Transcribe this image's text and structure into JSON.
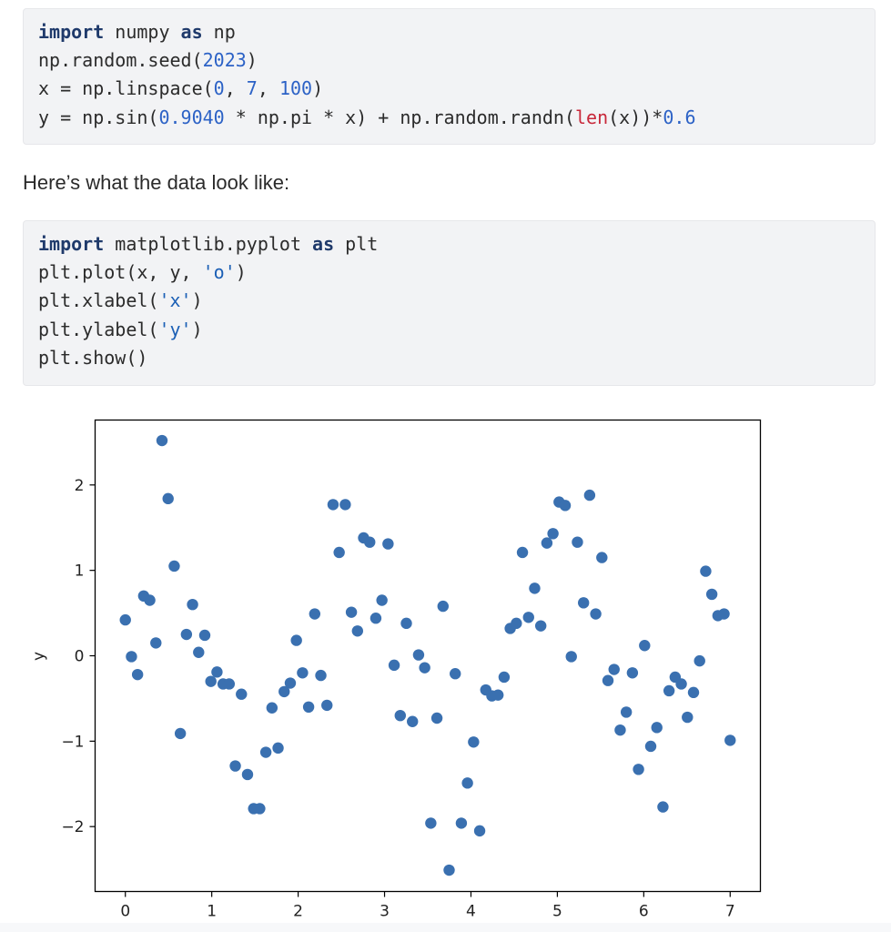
{
  "code1": {
    "lines": [
      [
        {
          "t": "import",
          "c": "kw"
        },
        {
          "t": " numpy "
        },
        {
          "t": "as",
          "c": "kw"
        },
        {
          "t": " np"
        }
      ],
      [
        {
          "t": "np.random.seed("
        },
        {
          "t": "2023",
          "c": "num"
        },
        {
          "t": ")"
        }
      ],
      [
        {
          "t": "x = np.linspace("
        },
        {
          "t": "0",
          "c": "num"
        },
        {
          "t": ", "
        },
        {
          "t": "7",
          "c": "num"
        },
        {
          "t": ", "
        },
        {
          "t": "100",
          "c": "num"
        },
        {
          "t": ")"
        }
      ],
      [
        {
          "t": "y = np.sin("
        },
        {
          "t": "0.9040",
          "c": "num"
        },
        {
          "t": " * np.pi * x) + np.random.randn("
        },
        {
          "t": "len",
          "c": "bi"
        },
        {
          "t": "(x))*"
        },
        {
          "t": "0.6",
          "c": "num"
        }
      ]
    ]
  },
  "prose_text": "Here’s what the data look like:",
  "code2": {
    "lines": [
      [
        {
          "t": "import",
          "c": "kw"
        },
        {
          "t": " matplotlib.pyplot "
        },
        {
          "t": "as",
          "c": "kw"
        },
        {
          "t": " plt"
        }
      ],
      [
        {
          "t": "plt.plot(x, y, "
        },
        {
          "t": "'o'",
          "c": "str"
        },
        {
          "t": ")"
        }
      ],
      [
        {
          "t": "plt.xlabel("
        },
        {
          "t": "'x'",
          "c": "str"
        },
        {
          "t": ")"
        }
      ],
      [
        {
          "t": "plt.ylabel("
        },
        {
          "t": "'y'",
          "c": "str"
        },
        {
          "t": ")"
        }
      ],
      [
        {
          "t": "plt.show()"
        }
      ]
    ]
  },
  "chart_data": {
    "type": "scatter",
    "xlabel": "x",
    "ylabel": "y",
    "xlim": [
      -0.35,
      7.35
    ],
    "ylim": [
      -2.76,
      2.76
    ],
    "xticks": [
      0,
      1,
      2,
      3,
      4,
      5,
      6,
      7
    ],
    "yticks": [
      -2,
      -1,
      0,
      1,
      2
    ],
    "tick_labels_x": [
      "0",
      "1",
      "2",
      "3",
      "4",
      "5",
      "6",
      "7"
    ],
    "tick_labels_y": [
      "−2",
      "−1",
      "0",
      "1",
      "2"
    ],
    "grid": false,
    "marker_color": "#3a70b0",
    "series": [
      {
        "x": [
          0,
          0.0707,
          0.1414,
          0.2121,
          0.2828,
          0.3535,
          0.4242,
          0.4949,
          0.5657,
          0.6364,
          0.7071,
          0.7778,
          0.8485,
          0.9192,
          0.9899,
          1.0606,
          1.1313,
          1.202,
          1.2727,
          1.3434,
          1.4141,
          1.4848,
          1.5556,
          1.6263,
          1.697,
          1.7677,
          1.8384,
          1.9091,
          1.9798,
          2.0505,
          2.1212,
          2.1919,
          2.2626,
          2.3333,
          2.404,
          2.4747,
          2.5455,
          2.6162,
          2.6869,
          2.7576,
          2.8283,
          2.899,
          2.9697,
          3.0404,
          3.1111,
          3.1818,
          3.2525,
          3.3232,
          3.3939,
          3.4646,
          3.5354,
          3.6061,
          3.6768,
          3.7475,
          3.8182,
          3.8889,
          3.9596,
          4.0303,
          4.101,
          4.1717,
          4.2424,
          4.3131,
          4.3838,
          4.4545,
          4.5253,
          4.596,
          4.6667,
          4.7374,
          4.8081,
          4.8788,
          4.9495,
          5.0202,
          5.0909,
          5.1616,
          5.2323,
          5.303,
          5.3737,
          5.4444,
          5.5152,
          5.5859,
          5.6566,
          5.7273,
          5.798,
          5.8687,
          5.9394,
          6.0101,
          6.0808,
          6.1515,
          6.2222,
          6.2929,
          6.3636,
          6.4343,
          6.5051,
          6.5758,
          6.6465,
          6.7172,
          6.7879,
          6.8586,
          6.9293,
          7.0
        ],
        "y": [
          0.42,
          -0.01,
          -0.22,
          0.7,
          0.65,
          0.15,
          2.52,
          1.84,
          1.05,
          -0.91,
          0.25,
          0.6,
          0.04,
          0.24,
          -0.3,
          -0.19,
          -0.33,
          -0.33,
          -1.29,
          -0.45,
          -1.39,
          -1.79,
          -1.79,
          -1.13,
          -0.61,
          -1.08,
          -0.42,
          -0.32,
          0.18,
          -0.2,
          -0.6,
          0.49,
          -0.23,
          -0.58,
          1.77,
          1.21,
          1.77,
          0.51,
          0.29,
          1.38,
          1.33,
          0.44,
          0.65,
          1.31,
          -0.11,
          -0.7,
          0.38,
          -0.77,
          0.01,
          -0.14,
          -1.96,
          -0.73,
          0.58,
          -2.51,
          -0.21,
          -1.96,
          -1.49,
          -1.01,
          -2.05,
          -0.4,
          -0.47,
          -0.46,
          -0.25,
          0.32,
          0.38,
          1.21,
          0.45,
          0.79,
          0.35,
          1.32,
          1.43,
          1.8,
          1.76,
          -0.01,
          1.33,
          0.62,
          1.88,
          0.49,
          1.15,
          -0.29,
          -0.16,
          -0.87,
          -0.66,
          -0.2,
          -1.33,
          0.12,
          -1.06,
          -0.84,
          -1.77,
          -0.41,
          -0.25,
          -0.33,
          -0.72,
          -0.43,
          -0.06,
          0.99,
          0.72,
          0.47,
          0.49,
          -0.99
        ]
      }
    ]
  }
}
